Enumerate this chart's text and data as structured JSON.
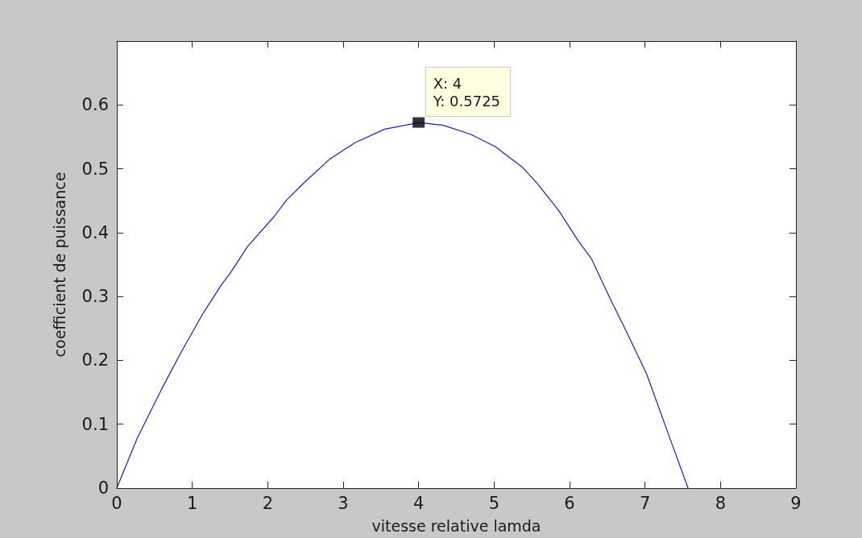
{
  "chart_data": {
    "type": "line",
    "xlabel": "vitesse relative lamda",
    "ylabel": "coefficient de puissance",
    "xlim": [
      0,
      9
    ],
    "xticks": [
      0,
      1,
      2,
      3,
      4,
      5,
      6,
      7,
      8,
      9
    ],
    "ylim": [
      0,
      0.7
    ],
    "yticks": [
      0,
      0.1,
      0.2,
      0.3,
      0.4,
      0.5,
      0.6
    ],
    "grid": false,
    "series": [
      {
        "color": "#1f1fa8",
        "marker": "none",
        "x": [
          0,
          0.27,
          0.59,
          0.84,
          1.14,
          1.39,
          1.5,
          1.73,
          2.09,
          2.25,
          2.48,
          2.83,
          3.16,
          3.55,
          3.9,
          4,
          4.33,
          4.69,
          5.01,
          5.37,
          5.58,
          5.86,
          6.11,
          6.29,
          6.54,
          6.75,
          7.02,
          7.29,
          7.57
        ],
        "values": [
          0,
          0.078,
          0.154,
          0.21,
          0.273,
          0.319,
          0.336,
          0.378,
          0.426,
          0.451,
          0.478,
          0.516,
          0.541,
          0.562,
          0.57,
          0.5725,
          0.568,
          0.554,
          0.535,
          0.503,
          0.476,
          0.434,
          0.388,
          0.359,
          0.296,
          0.246,
          0.179,
          0.091,
          0
        ]
      },
      {
        "type": "scatter",
        "color": "#000000",
        "marker": "square",
        "x": [
          4
        ],
        "values": [
          0.5725
        ]
      }
    ],
    "annotations": [
      {
        "text": "X: 4\nY: 0.5725",
        "x": 4,
        "y": 0.5725
      }
    ]
  }
}
